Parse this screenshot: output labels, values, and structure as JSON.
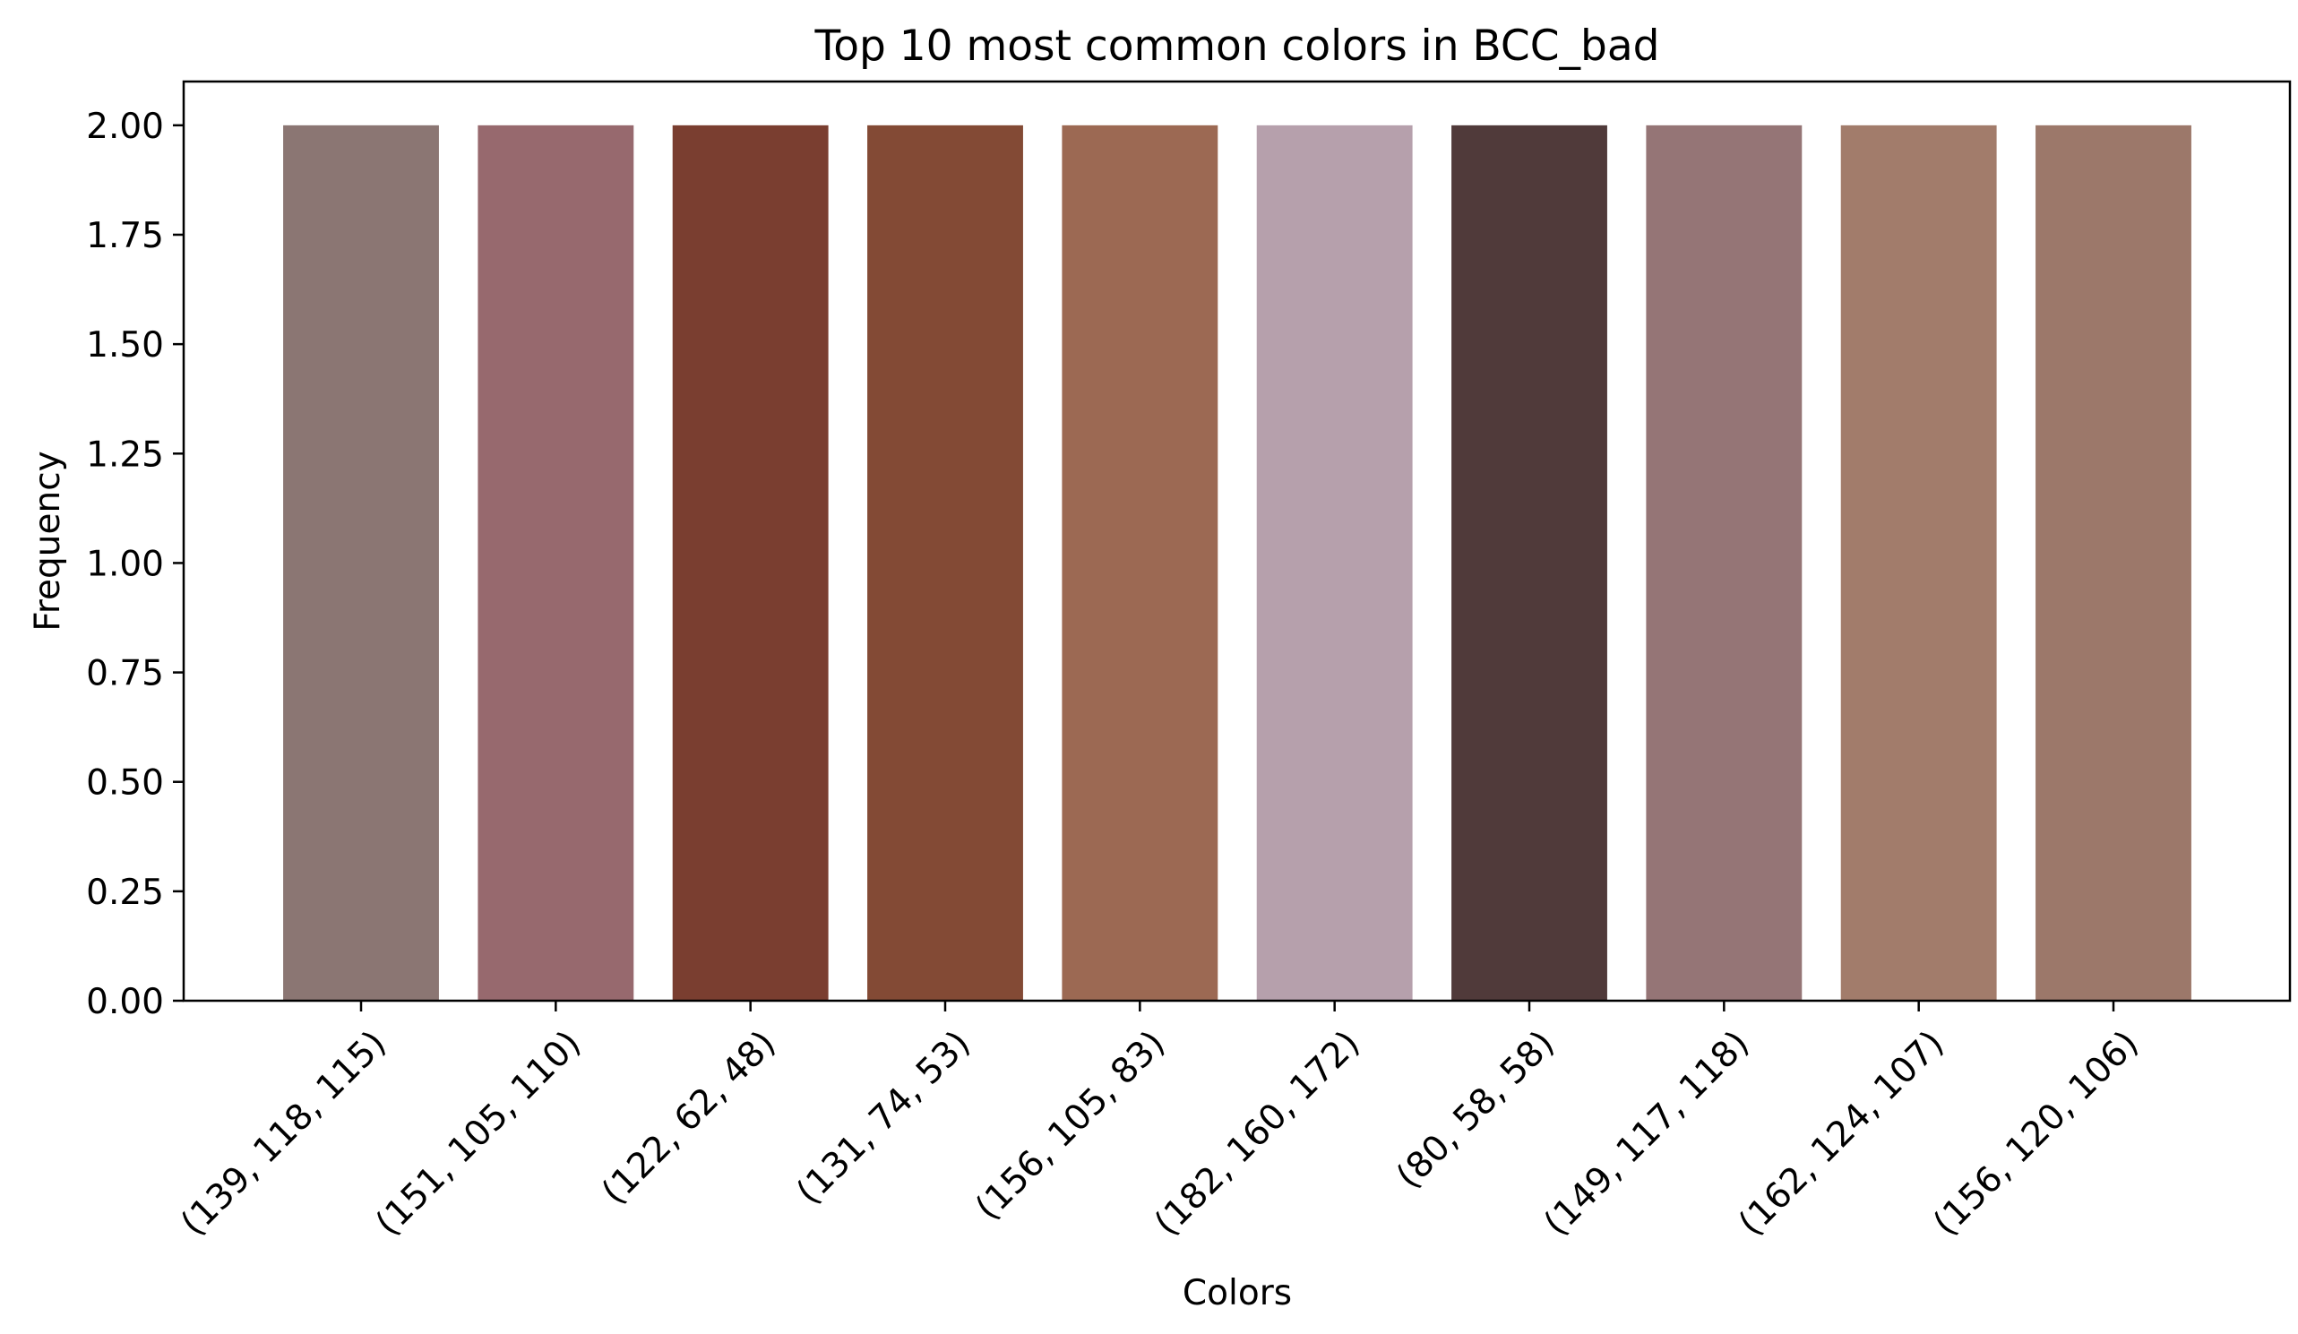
{
  "chart_data": {
    "type": "bar",
    "title": "Top 10 most common colors in BCC_bad",
    "xlabel": "Colors",
    "ylabel": "Frequency",
    "ylim": [
      0,
      2.1
    ],
    "yticks": [
      "0.00",
      "0.25",
      "0.50",
      "0.75",
      "1.00",
      "1.25",
      "1.50",
      "1.75",
      "2.00"
    ],
    "ytick_values": [
      0,
      0.25,
      0.5,
      0.75,
      1.0,
      1.25,
      1.5,
      1.75,
      2.0
    ],
    "grid": false,
    "categories": [
      "(139, 118, 115)",
      "(151, 105, 110)",
      "(122, 62, 48)",
      "(131, 74, 53)",
      "(156, 105, 83)",
      "(182, 160, 172)",
      "(80, 58, 58)",
      "(149, 117, 118)",
      "(162, 124, 107)",
      "(156, 120, 106)"
    ],
    "values": [
      2,
      2,
      2,
      2,
      2,
      2,
      2,
      2,
      2,
      2
    ],
    "bar_colors": [
      "#8b7673",
      "#97696e",
      "#7a3e30",
      "#834a35",
      "#9c6953",
      "#b6a0ac",
      "#503a3a",
      "#957576",
      "#a27c6b",
      "#9c786a"
    ]
  }
}
